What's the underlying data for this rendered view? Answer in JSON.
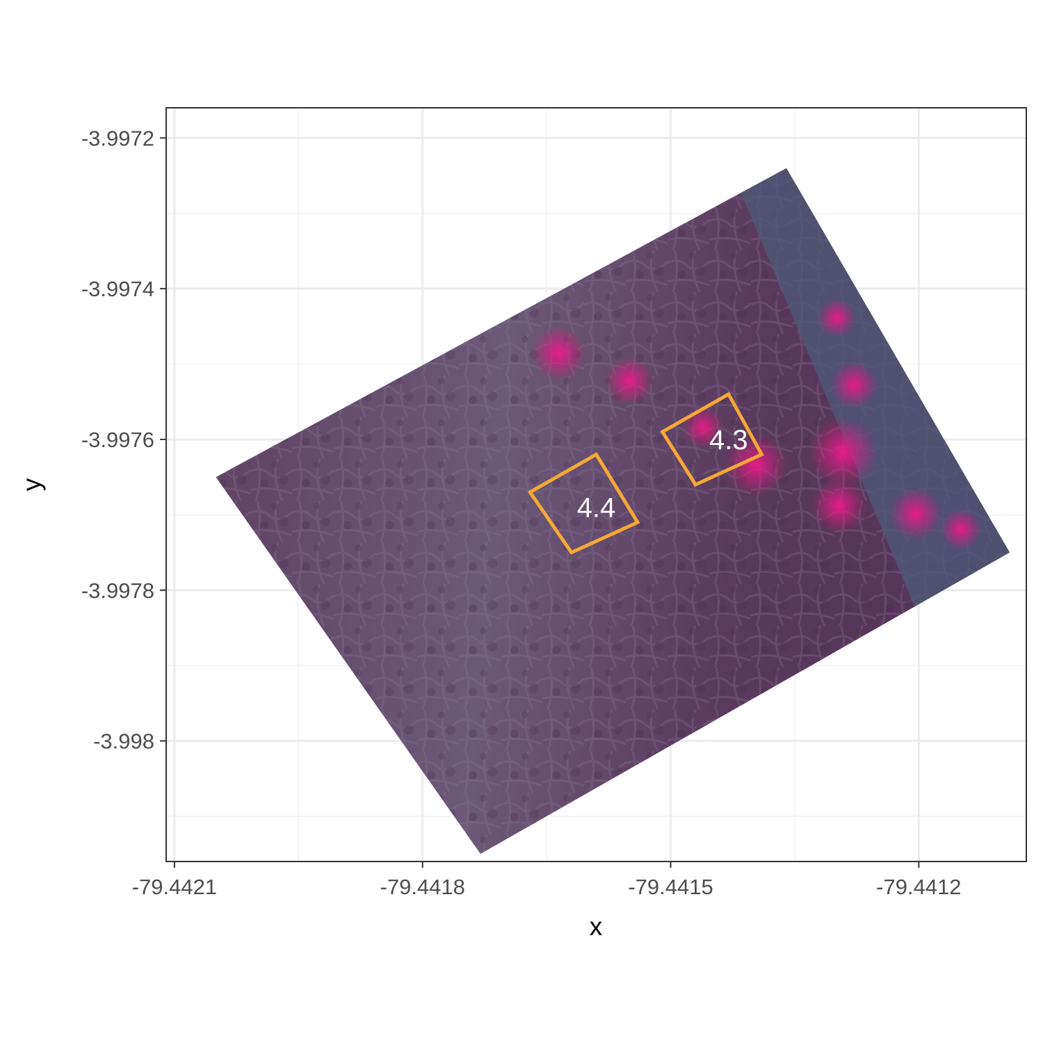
{
  "chart_data": {
    "type": "map",
    "xlabel": "x",
    "ylabel": "y",
    "xlim": [
      -79.44211,
      -79.44107
    ],
    "ylim": [
      -3.99816,
      -3.99716
    ],
    "x_ticks": [
      {
        "value": -79.4421,
        "label": "-79.4421"
      },
      {
        "value": -79.4418,
        "label": "-79.4418"
      },
      {
        "value": -79.4415,
        "label": "-79.4415"
      },
      {
        "value": -79.4412,
        "label": "-79.4412"
      }
    ],
    "y_ticks": [
      {
        "value": -3.9972,
        "label": "-3.9972"
      },
      {
        "value": -3.9974,
        "label": "-3.9974"
      },
      {
        "value": -3.9976,
        "label": "-3.9976"
      },
      {
        "value": -3.9978,
        "label": "-3.9978"
      },
      {
        "value": -3.998,
        "label": "-3.998"
      }
    ],
    "grid": true,
    "raster": {
      "name": "false-color aerial image",
      "corners": [
        {
          "x": -79.44205,
          "y": -3.99765
        },
        {
          "x": -79.44136,
          "y": -3.99724
        },
        {
          "x": -79.44109,
          "y": -3.99775
        },
        {
          "x": -79.44173,
          "y": -3.99815
        }
      ],
      "colors": {
        "base": "#5c3d5e",
        "mid": "#6e5a7a",
        "vegetation": "#d6187a",
        "water_edge": "#4d5a78"
      }
    },
    "plots": [
      {
        "label": "4.4",
        "label_point": {
          "x": -79.44159,
          "y": -3.99769
        },
        "corners": [
          {
            "x": -79.44167,
            "y": -3.99767
          },
          {
            "x": -79.44159,
            "y": -3.99762
          },
          {
            "x": -79.44154,
            "y": -3.99771
          },
          {
            "x": -79.44162,
            "y": -3.99775
          }
        ]
      },
      {
        "label": "4.3",
        "label_point": {
          "x": -79.44143,
          "y": -3.9976
        },
        "corners": [
          {
            "x": -79.44151,
            "y": -3.99759
          },
          {
            "x": -79.44143,
            "y": -3.99754
          },
          {
            "x": -79.44139,
            "y": -3.99762
          },
          {
            "x": -79.44147,
            "y": -3.99766
          }
        ]
      }
    ],
    "plot_color": "#f5a836"
  }
}
